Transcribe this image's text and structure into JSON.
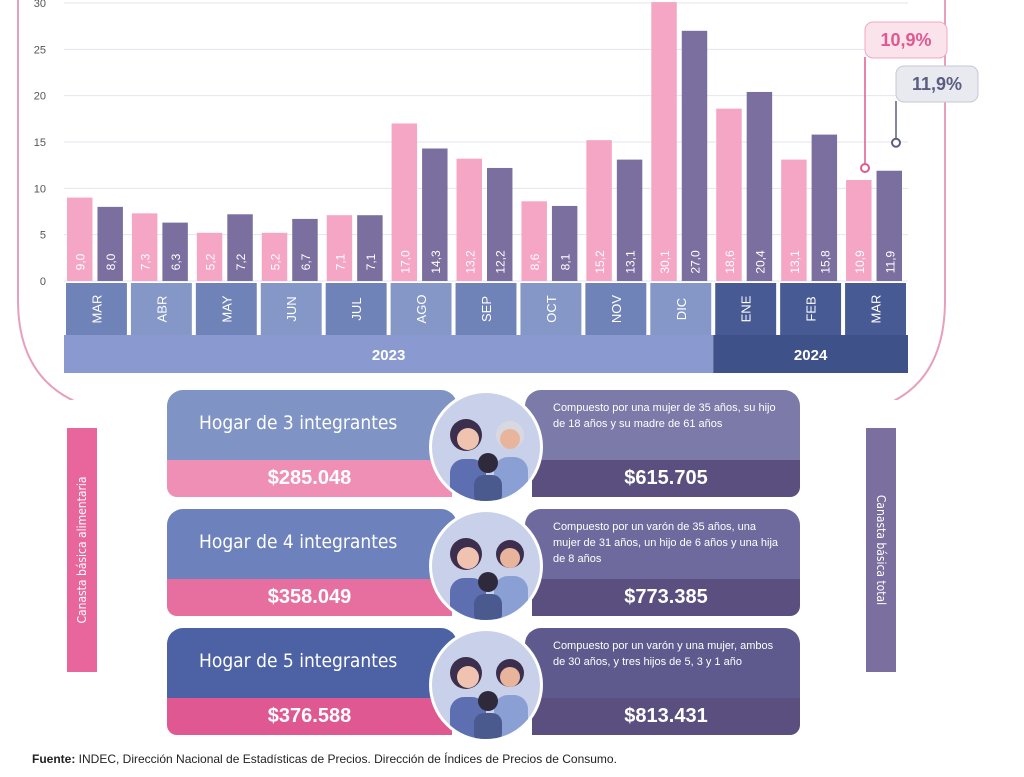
{
  "chart_data": {
    "type": "bar",
    "categories": [
      "MAR",
      "ABR",
      "MAY",
      "JUN",
      "JUL",
      "AGO",
      "SEP",
      "OCT",
      "NOV",
      "DIC",
      "ENE",
      "FEB",
      "MAR"
    ],
    "groups": [
      {
        "label": "2023",
        "size": 10
      },
      {
        "label": "2024",
        "size": 3
      }
    ],
    "series": [
      {
        "name": "Canasta básica alimentaria",
        "color": "#f4a6c4",
        "values": [
          9.0,
          7.3,
          5.2,
          5.2,
          7.1,
          17.0,
          13.2,
          8.6,
          15.2,
          30.1,
          18.6,
          13.1,
          10.9
        ],
        "value_labels": [
          "9,0",
          "7,3",
          "5,2",
          "5,2",
          "7,1",
          "17,0",
          "13,2",
          "8,6",
          "15,2",
          "30,1",
          "18,6",
          "13,1",
          "10,9"
        ]
      },
      {
        "name": "Canasta básica total",
        "color": "#7b6f9f",
        "values": [
          8.0,
          6.3,
          7.2,
          6.7,
          7.1,
          14.3,
          12.2,
          8.1,
          13.1,
          27.0,
          20.4,
          15.8,
          11.9
        ],
        "value_labels": [
          "8,0",
          "6,3",
          "7,2",
          "6,7",
          "7,1",
          "14,3",
          "12,2",
          "8,1",
          "13,1",
          "27,0",
          "20,4",
          "15,8",
          "11,9"
        ]
      }
    ],
    "annotations": [
      {
        "value": 10.9,
        "label": "10,9%"
      },
      {
        "value": 11.9,
        "label": "11,9%"
      }
    ],
    "ylim": [
      0,
      30
    ],
    "yticks": [
      0,
      5,
      10,
      15,
      20,
      25,
      30
    ],
    "grid": true
  },
  "households": [
    {
      "title": "Hogar de 3 integrantes",
      "description": "Compuesto por una mujer de 35 años, su hijo de 18 años y su madre de 61 años",
      "food_basket": "$285.048",
      "total_basket": "$615.705"
    },
    {
      "title": "Hogar de 4 integrantes",
      "description": "Compuesto por un varón de 35 años, una mujer de 31 años, un hijo de 6 años y una hija de 8 años",
      "food_basket": "$358.049",
      "total_basket": "$773.385"
    },
    {
      "title": "Hogar de 5 integrantes",
      "description": "Compuesto por un varón y una mujer, ambos de 30 años, y tres hijos de 5, 3 y 1 año",
      "food_basket": "$376.588",
      "total_basket": "$813.431"
    }
  ],
  "footer": {
    "label": "Fuente:",
    "text": " INDEC, Dirección Nacional de Estadísticas de Precios. Dirección de Índices de Precios de Consumo."
  }
}
